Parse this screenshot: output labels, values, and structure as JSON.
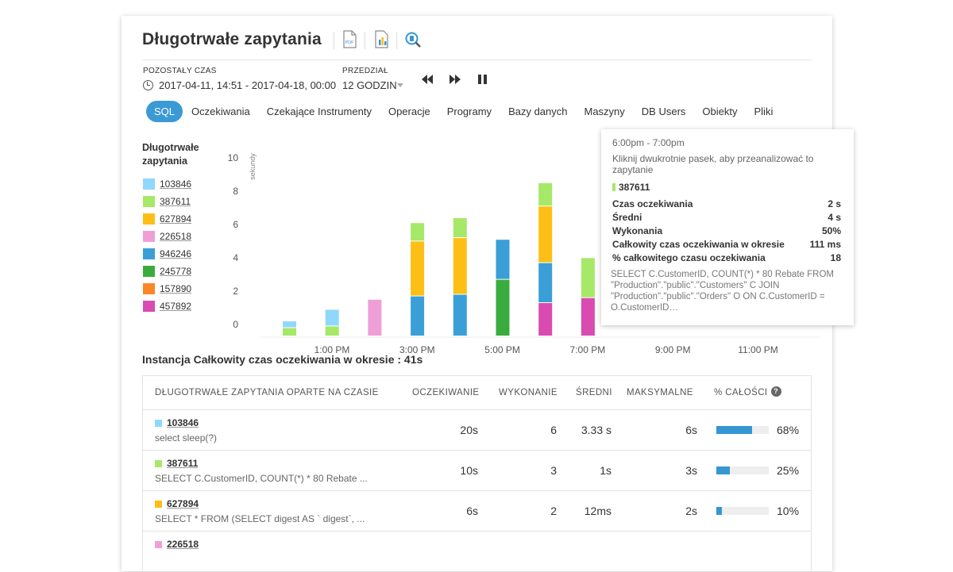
{
  "title": "Długotrwałe zapytania",
  "toolbar": {
    "pdf_icon": "pdf-icon",
    "report_icon": "report-icon",
    "search_icon": "search-zoom-icon"
  },
  "time": {
    "label": "POZOSTAŁY CZAS",
    "value": "2017-04-11, 14:51 - 2017-04-18, 00:00"
  },
  "interval": {
    "label": "PRZEDZIAŁ",
    "value": "12 GODZIN"
  },
  "tabs": [
    {
      "label": "SQL",
      "active": true
    },
    {
      "label": "Oczekiwania"
    },
    {
      "label": "Czekające Instrumenty"
    },
    {
      "label": "Operacje"
    },
    {
      "label": "Programy"
    },
    {
      "label": "Bazy danych"
    },
    {
      "label": "Maszyny"
    },
    {
      "label": "DB Users"
    },
    {
      "label": "Obiekty"
    },
    {
      "label": "Pliki"
    }
  ],
  "legend": {
    "title": "Długotrwałe zapytania",
    "items": [
      {
        "label": "103846",
        "color": "#8fd8fb"
      },
      {
        "label": "387611",
        "color": "#a6e868"
      },
      {
        "label": "627894",
        "color": "#fdbf16"
      },
      {
        "label": "226518",
        "color": "#ef9fd6"
      },
      {
        "label": "946246",
        "color": "#3a9fd6"
      },
      {
        "label": "245778",
        "color": "#3aac3e"
      },
      {
        "label": "157890",
        "color": "#fc8626"
      },
      {
        "label": "457892",
        "color": "#d94bb0"
      }
    ]
  },
  "chart_data": {
    "type": "bar",
    "stacked": true,
    "ylabel": "sekundy",
    "ylim": [
      0,
      10
    ],
    "yticks": [
      "10",
      "8",
      "6",
      "4",
      "2",
      "0"
    ],
    "xticks": [
      "1:00 PM",
      "3:00 PM",
      "5:00 PM",
      "7:00 PM",
      "9:00 PM",
      "11:00 PM"
    ],
    "bars": [
      {
        "segments": [
          {
            "series": "387611",
            "value": 0.5
          },
          {
            "series": "103846",
            "value": 0.4
          }
        ]
      },
      {
        "segments": [
          {
            "series": "387611",
            "value": 0.6
          },
          {
            "series": "103846",
            "value": 1.0
          }
        ]
      },
      {
        "segments": [
          {
            "series": "226518",
            "value": 2.2
          }
        ]
      },
      {
        "segments": [
          {
            "series": "946246",
            "value": 2.4
          },
          {
            "series": "627894",
            "value": 3.3
          },
          {
            "series": "387611",
            "value": 1.1
          }
        ]
      },
      {
        "segments": [
          {
            "series": "946246",
            "value": 2.5
          },
          {
            "series": "627894",
            "value": 3.4
          },
          {
            "series": "387611",
            "value": 1.2
          }
        ]
      },
      {
        "segments": [
          {
            "series": "245778",
            "value": 3.4
          },
          {
            "series": "946246",
            "value": 2.4
          }
        ]
      },
      {
        "segments": [
          {
            "series": "457892",
            "value": 2.0
          },
          {
            "series": "946246",
            "value": 2.4
          },
          {
            "series": "627894",
            "value": 3.4
          },
          {
            "series": "387611",
            "value": 1.4
          }
        ]
      },
      {
        "segments": [
          {
            "series": "457892",
            "value": 2.3
          },
          {
            "series": "387611",
            "value": 2.4
          }
        ]
      }
    ]
  },
  "tooltip": {
    "time": "6:00pm - 7:00pm",
    "hint": "Kliknij dwukrotnie pasek, aby przeanalizować to zapytanie",
    "id": "387611",
    "rows": [
      {
        "label": "Czas oczekiwania",
        "value": "2 s"
      },
      {
        "label": "Średni",
        "value": "4 s"
      },
      {
        "label": "Wykonania",
        "value": "50%"
      },
      {
        "label": "Całkowity czas oczekiwania w okresie",
        "value": "111 ms"
      },
      {
        "label": "% całkowitego czasu oczekiwania",
        "value": "18"
      }
    ],
    "sql": "SELECT C.CustomerID, COUNT(*) * 80 Rebate FROM \"Production\".\"public\".\"Customers\" C JOIN \"Production\".\"public\".\"Orders\" O ON C.CustomerID = O.CustomerID…"
  },
  "instance": "Instancja Całkowity czas oczekiwania w okresie : 41s",
  "table": {
    "headers": {
      "query": "DŁUGOTRWAŁE ZAPYTANIA OPARTE NA CZASIE",
      "wait": "OCZEKIWANIE",
      "exec": "WYKONANIE",
      "avg": "ŚREDNI",
      "max": "MAKSYMALNE",
      "pct": "% CAŁOŚCI"
    },
    "rows": [
      {
        "id": "103846",
        "color": "#8fd8fb",
        "sql": "select sleep(?)",
        "wait": "20s",
        "exec": "6",
        "avg": "3.33 s",
        "max": "6s",
        "pct": "68%",
        "pct_value": 68
      },
      {
        "id": "387611",
        "color": "#a6e868",
        "sql": "SELECT C.CustomerID, COUNT(*) * 80 Rebate ...",
        "wait": "10s",
        "exec": "3",
        "avg": "1s",
        "max": "3s",
        "pct": "25%",
        "pct_value": 25
      },
      {
        "id": "627894",
        "color": "#fdbf16",
        "sql": "SELECT * FROM (SELECT digest AS ` digest`, ...",
        "wait": "6s",
        "exec": "2",
        "avg": "12ms",
        "max": "2s",
        "pct": "10%",
        "pct_value": 10
      },
      {
        "id": "226518",
        "color": "#ef9fd6",
        "sql": "",
        "wait": "",
        "exec": "",
        "avg": "",
        "max": "",
        "pct": "",
        "pct_value": 0
      }
    ]
  }
}
